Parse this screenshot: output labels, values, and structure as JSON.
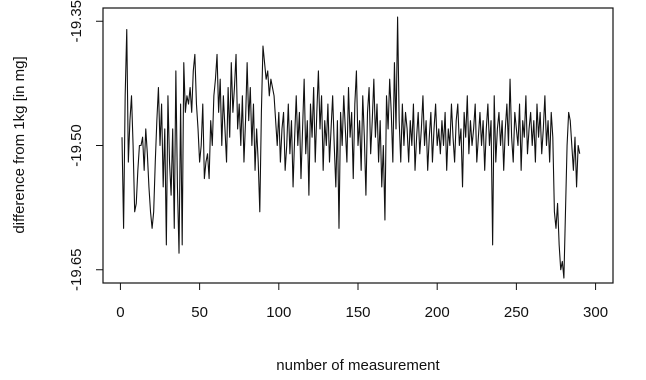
{
  "chart_data": {
    "type": "line",
    "xlabel": "number of measurement",
    "ylabel": "difference from 1kg [in mg]",
    "color": "#111111",
    "xlim": [
      -11,
      311
    ],
    "ylim": [
      -19.666,
      -19.334
    ],
    "xticks": [
      0,
      50,
      100,
      150,
      200,
      250,
      300
    ],
    "yticks": [
      -19.35,
      {
        "value": -19.5,
        "label": "-19.50"
      },
      -19.65
    ],
    "x": [
      1,
      2,
      3,
      4,
      5,
      6,
      7,
      8,
      9,
      10,
      11,
      12,
      13,
      14,
      15,
      16,
      17,
      18,
      19,
      20,
      21,
      22,
      23,
      24,
      25,
      26,
      27,
      28,
      29,
      30,
      31,
      32,
      33,
      34,
      35,
      36,
      37,
      38,
      39,
      40,
      41,
      42,
      43,
      44,
      45,
      46,
      47,
      48,
      49,
      50,
      51,
      52,
      53,
      54,
      55,
      56,
      57,
      58,
      59,
      60,
      61,
      62,
      63,
      64,
      65,
      66,
      67,
      68,
      69,
      70,
      71,
      72,
      73,
      74,
      75,
      76,
      77,
      78,
      79,
      80,
      81,
      82,
      83,
      84,
      85,
      86,
      87,
      88,
      89,
      90,
      91,
      92,
      93,
      94,
      95,
      96,
      97,
      98,
      99,
      100,
      101,
      102,
      103,
      104,
      105,
      106,
      107,
      108,
      109,
      110,
      111,
      112,
      113,
      114,
      115,
      116,
      117,
      118,
      119,
      120,
      121,
      122,
      123,
      124,
      125,
      126,
      127,
      128,
      129,
      130,
      131,
      132,
      133,
      134,
      135,
      136,
      137,
      138,
      139,
      140,
      141,
      142,
      143,
      144,
      145,
      146,
      147,
      148,
      149,
      150,
      151,
      152,
      153,
      154,
      155,
      156,
      157,
      158,
      159,
      160,
      161,
      162,
      163,
      164,
      165,
      166,
      167,
      168,
      169,
      170,
      171,
      172,
      173,
      174,
      175,
      176,
      177,
      178,
      179,
      180,
      181,
      182,
      183,
      184,
      185,
      186,
      187,
      188,
      189,
      190,
      191,
      192,
      193,
      194,
      195,
      196,
      197,
      198,
      199,
      200,
      201,
      202,
      203,
      204,
      205,
      206,
      207,
      208,
      209,
      210,
      211,
      212,
      213,
      214,
      215,
      216,
      217,
      218,
      219,
      220,
      221,
      222,
      223,
      224,
      225,
      226,
      227,
      228,
      229,
      230,
      231,
      232,
      233,
      234,
      235,
      236,
      237,
      238,
      239,
      240,
      241,
      242,
      243,
      244,
      245,
      246,
      247,
      248,
      249,
      250,
      251,
      252,
      253,
      254,
      255,
      256,
      257,
      258,
      259,
      260,
      261,
      262,
      263,
      264,
      265,
      266,
      267,
      268,
      269,
      270,
      271,
      272,
      273,
      274,
      275,
      276,
      277,
      278,
      279,
      280,
      281,
      282,
      283,
      284,
      285,
      286,
      287,
      288,
      289,
      290
    ],
    "values": [
      -19.49,
      -19.6,
      -19.44,
      -19.36,
      -19.52,
      -19.47,
      -19.44,
      -19.5,
      -19.58,
      -19.57,
      -19.53,
      -19.5,
      -19.5,
      -19.49,
      -19.53,
      -19.48,
      -19.51,
      -19.55,
      -19.58,
      -19.6,
      -19.58,
      -19.52,
      -19.47,
      -19.43,
      -19.5,
      -19.45,
      -19.55,
      -19.48,
      -19.62,
      -19.44,
      -19.52,
      -19.56,
      -19.48,
      -19.6,
      -19.41,
      -19.55,
      -19.63,
      -19.45,
      -19.62,
      -19.4,
      -19.46,
      -19.44,
      -19.45,
      -19.43,
      -19.46,
      -19.41,
      -19.39,
      -19.45,
      -19.48,
      -19.52,
      -19.5,
      -19.45,
      -19.54,
      -19.52,
      -19.51,
      -19.54,
      -19.47,
      -19.5,
      -19.44,
      -19.42,
      -19.39,
      -19.46,
      -19.42,
      -19.5,
      -19.44,
      -19.48,
      -19.52,
      -19.43,
      -19.49,
      -19.4,
      -19.46,
      -19.43,
      -19.39,
      -19.48,
      -19.45,
      -19.5,
      -19.44,
      -19.52,
      -19.47,
      -19.4,
      -19.47,
      -19.43,
      -19.5,
      -19.45,
      -19.53,
      -19.48,
      -19.52,
      -19.58,
      -19.46,
      -19.38,
      -19.4,
      -19.42,
      -19.41,
      -19.44,
      -19.42,
      -19.43,
      -19.44,
      -19.47,
      -19.5,
      -19.46,
      -19.52,
      -19.48,
      -19.46,
      -19.53,
      -19.5,
      -19.45,
      -19.51,
      -19.47,
      -19.55,
      -19.49,
      -19.44,
      -19.5,
      -19.46,
      -19.54,
      -19.48,
      -19.42,
      -19.51,
      -19.47,
      -19.56,
      -19.45,
      -19.49,
      -19.43,
      -19.52,
      -19.46,
      -19.41,
      -19.48,
      -19.44,
      -19.53,
      -19.47,
      -19.5,
      -19.45,
      -19.52,
      -19.48,
      -19.44,
      -19.5,
      -19.55,
      -19.47,
      -19.6,
      -19.46,
      -19.5,
      -19.44,
      -19.48,
      -19.52,
      -19.43,
      -19.49,
      -19.46,
      -19.54,
      -19.45,
      -19.41,
      -19.5,
      -19.47,
      -19.53,
      -19.44,
      -19.49,
      -19.56,
      -19.46,
      -19.43,
      -19.51,
      -19.47,
      -19.42,
      -19.49,
      -19.45,
      -19.52,
      -19.47,
      -19.55,
      -19.5,
      -19.59,
      -19.44,
      -19.48,
      -19.42,
      -19.46,
      -19.52,
      -19.4,
      -19.48,
      -19.345,
      -19.47,
      -19.52,
      -19.45,
      -19.5,
      -19.46,
      -19.48,
      -19.52,
      -19.47,
      -19.5,
      -19.45,
      -19.53,
      -19.49,
      -19.46,
      -19.51,
      -19.48,
      -19.44,
      -19.5,
      -19.47,
      -19.53,
      -19.49,
      -19.46,
      -19.52,
      -19.48,
      -19.45,
      -19.5,
      -19.48,
      -19.51,
      -19.47,
      -19.5,
      -19.46,
      -19.53,
      -19.48,
      -19.5,
      -19.45,
      -19.49,
      -19.52,
      -19.47,
      -19.45,
      -19.5,
      -19.48,
      -19.55,
      -19.46,
      -19.49,
      -19.44,
      -19.51,
      -19.47,
      -19.5,
      -19.48,
      -19.45,
      -19.52,
      -19.49,
      -19.46,
      -19.5,
      -19.47,
      -19.53,
      -19.48,
      -19.45,
      -19.5,
      -19.47,
      -19.62,
      -19.44,
      -19.52,
      -19.48,
      -19.46,
      -19.5,
      -19.47,
      -19.53,
      -19.48,
      -19.45,
      -19.5,
      -19.42,
      -19.49,
      -19.52,
      -19.46,
      -19.48,
      -19.5,
      -19.45,
      -19.53,
      -19.47,
      -19.49,
      -19.44,
      -19.51,
      -19.48,
      -19.46,
      -19.5,
      -19.47,
      -19.52,
      -19.45,
      -19.49,
      -19.46,
      -19.51,
      -19.48,
      -19.44,
      -19.5,
      -19.47,
      -19.52,
      -19.46,
      -19.49,
      -19.58,
      -19.6,
      -19.57,
      -19.62,
      -19.65,
      -19.64,
      -19.66,
      -19.58,
      -19.5,
      -19.46,
      -19.47,
      -19.5,
      -19.53,
      -19.49,
      -19.55,
      -19.5,
      -19.51
    ]
  }
}
